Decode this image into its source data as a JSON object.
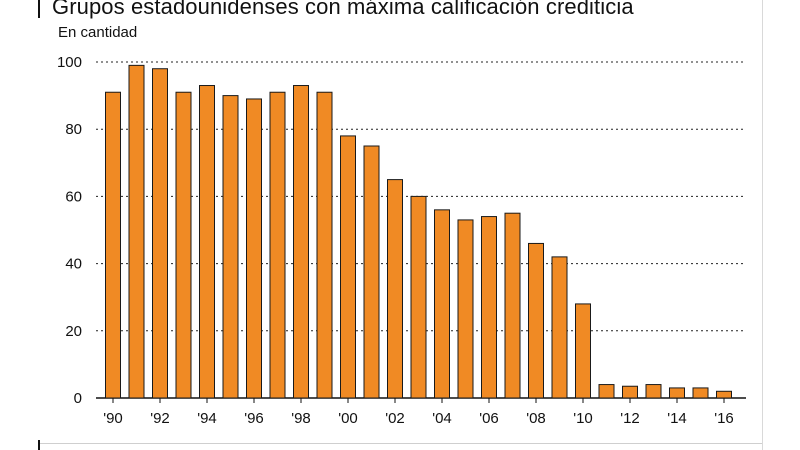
{
  "chart_data": {
    "type": "bar",
    "title": "Grupos estadounidenses con máxima calificación crediticia",
    "subtitle": "En cantidad",
    "categories": [
      "1990",
      "1991",
      "1992",
      "1993",
      "1994",
      "1995",
      "1996",
      "1997",
      "1998",
      "1999",
      "2000",
      "2001",
      "2002",
      "2003",
      "2004",
      "2005",
      "2006",
      "2007",
      "2008",
      "2009",
      "2010",
      "2011",
      "2012",
      "2013",
      "2014",
      "2015",
      "2016"
    ],
    "x_tick_labels": [
      {
        "category": "1990",
        "label": "'90"
      },
      {
        "category": "1992",
        "label": "'92"
      },
      {
        "category": "1994",
        "label": "'94"
      },
      {
        "category": "1996",
        "label": "'96"
      },
      {
        "category": "1998",
        "label": "'98"
      },
      {
        "category": "2000",
        "label": "'00"
      },
      {
        "category": "2002",
        "label": "'02"
      },
      {
        "category": "2004",
        "label": "'04"
      },
      {
        "category": "2006",
        "label": "'06"
      },
      {
        "category": "2008",
        "label": "'08"
      },
      {
        "category": "2010",
        "label": "'10"
      },
      {
        "category": "2012",
        "label": "'12"
      },
      {
        "category": "2014",
        "label": "'14"
      },
      {
        "category": "2016",
        "label": "'16"
      }
    ],
    "values": [
      91,
      99,
      98,
      91,
      93,
      90,
      89,
      91,
      93,
      91,
      78,
      75,
      65,
      60,
      56,
      53,
      54,
      55,
      46,
      42,
      28,
      4,
      3.5,
      4,
      3,
      3,
      2
    ],
    "y_ticks": [
      0,
      20,
      40,
      60,
      80,
      100
    ],
    "ylim": [
      0,
      100
    ],
    "grid": true,
    "grid_style": "dotted",
    "bar_color": "#f08a24",
    "bar_edge_color": "#1a1a1a"
  }
}
